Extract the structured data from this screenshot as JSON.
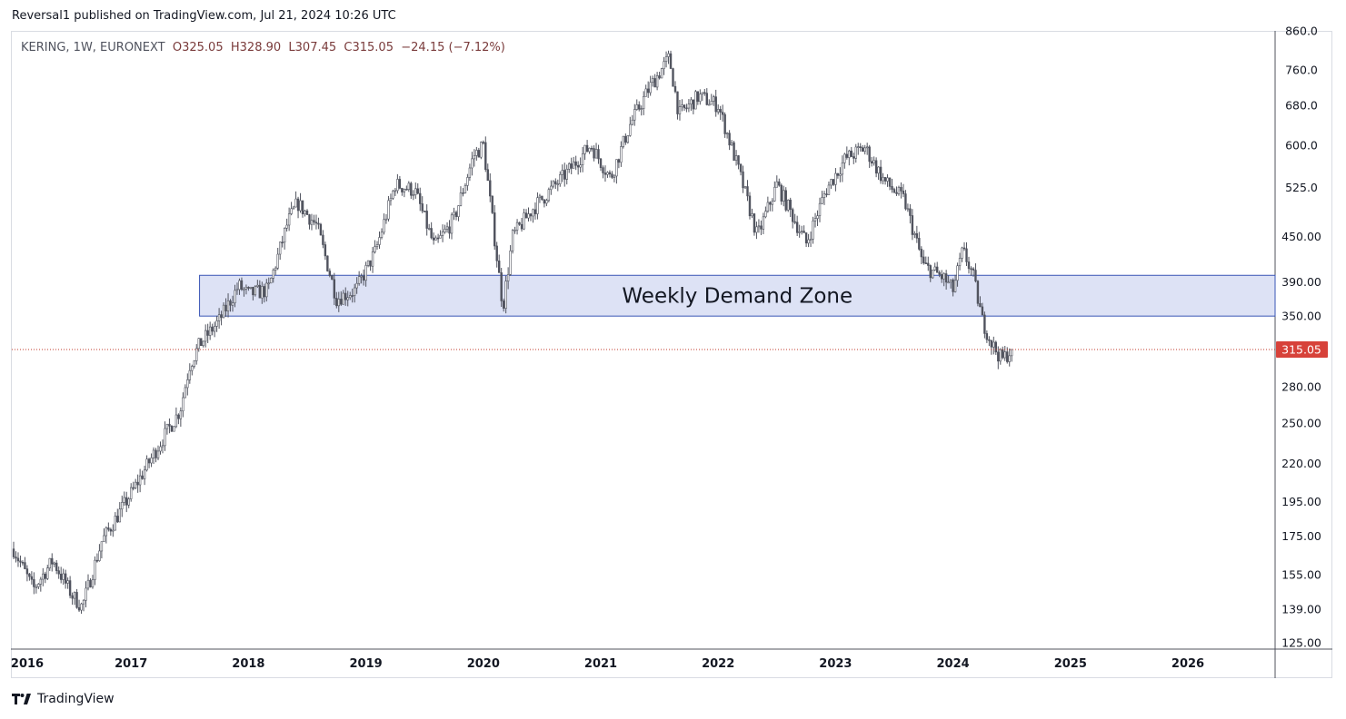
{
  "header": {
    "published_by": "Reversal1 published on TradingView.com, Jul 21, 2024 10:26 UTC"
  },
  "legend": {
    "symbol": "KERING, 1W, EURONEXT",
    "open": "O325.05",
    "high": "H328.90",
    "low": "L307.45",
    "close": "C315.05",
    "change": "−24.15 (−7.12%)"
  },
  "footer": {
    "brand": "TradingView"
  },
  "colors": {
    "candle": "#50535e",
    "zone_fill": "#dde2f5",
    "zone_border": "#3955b5",
    "price_line": "#c0392b",
    "price_tag": "#d7423a"
  },
  "chart_data": {
    "type": "candlestick",
    "title": "KERING, 1W, EURONEXT",
    "scale": "log",
    "ylim": [
      125,
      860
    ],
    "x_tick_labels": [
      "2016",
      "2017",
      "2018",
      "2019",
      "2020",
      "2021",
      "2022",
      "2023",
      "2024",
      "2025",
      "2026"
    ],
    "y_tick_labels": [
      "125.00",
      "139.00",
      "155.00",
      "175.00",
      "195.00",
      "220.00",
      "250.00",
      "280.00",
      "350.00",
      "390.00",
      "450.00",
      "525.0",
      "600.0",
      "680.0",
      "760.0",
      "860.0"
    ],
    "y_tick_values": [
      125,
      139,
      155,
      175,
      195,
      220,
      250,
      280,
      350,
      390,
      450,
      525,
      600,
      680,
      760,
      860
    ],
    "last_price": {
      "value": 315.05,
      "label": "315.05"
    },
    "annotations": [
      {
        "type": "rectangle",
        "label": "Weekly Demand Zone",
        "x_start": "2017-08",
        "x_end": "2027-02",
        "y_low": 350,
        "y_high": 398
      }
    ],
    "approx_weekly_close_path": [
      [
        "2016-01",
        168
      ],
      [
        "2016-03",
        148
      ],
      [
        "2016-05",
        162
      ],
      [
        "2016-07",
        145
      ],
      [
        "2016-08",
        140
      ],
      [
        "2016-10",
        172
      ],
      [
        "2017-01",
        200
      ],
      [
        "2017-04",
        235
      ],
      [
        "2017-06",
        260
      ],
      [
        "2017-07",
        300
      ],
      [
        "2017-08",
        320
      ],
      [
        "2017-10",
        345
      ],
      [
        "2017-12",
        385
      ],
      [
        "2018-01",
        375
      ],
      [
        "2018-03",
        380
      ],
      [
        "2018-05",
        470
      ],
      [
        "2018-06",
        500
      ],
      [
        "2018-08",
        465
      ],
      [
        "2018-10",
        370
      ],
      [
        "2018-12",
        380
      ],
      [
        "2019-02",
        430
      ],
      [
        "2019-04",
        530
      ],
      [
        "2019-06",
        520
      ],
      [
        "2019-08",
        435
      ],
      [
        "2019-10",
        475
      ],
      [
        "2019-12",
        580
      ],
      [
        "2020-01",
        600
      ],
      [
        "2020-03",
        360
      ],
      [
        "2020-04",
        450
      ],
      [
        "2020-06",
        490
      ],
      [
        "2020-09",
        540
      ],
      [
        "2020-12",
        600
      ],
      [
        "2021-02",
        540
      ],
      [
        "2021-04",
        640
      ],
      [
        "2021-06",
        720
      ],
      [
        "2021-08",
        790
      ],
      [
        "2021-09",
        660
      ],
      [
        "2021-11",
        700
      ],
      [
        "2022-01",
        680
      ],
      [
        "2022-03",
        560
      ],
      [
        "2022-05",
        450
      ],
      [
        "2022-07",
        530
      ],
      [
        "2022-10",
        440
      ],
      [
        "2022-12",
        520
      ],
      [
        "2023-02",
        575
      ],
      [
        "2023-04",
        595
      ],
      [
        "2023-06",
        535
      ],
      [
        "2023-08",
        505
      ],
      [
        "2023-10",
        410
      ],
      [
        "2023-12",
        395
      ],
      [
        "2024-01",
        380
      ],
      [
        "2024-02",
        430
      ],
      [
        "2024-03",
        400
      ],
      [
        "2024-04",
        345
      ],
      [
        "2024-05",
        320
      ],
      [
        "2024-06",
        305
      ],
      [
        "2024-07",
        315.05
      ]
    ]
  }
}
